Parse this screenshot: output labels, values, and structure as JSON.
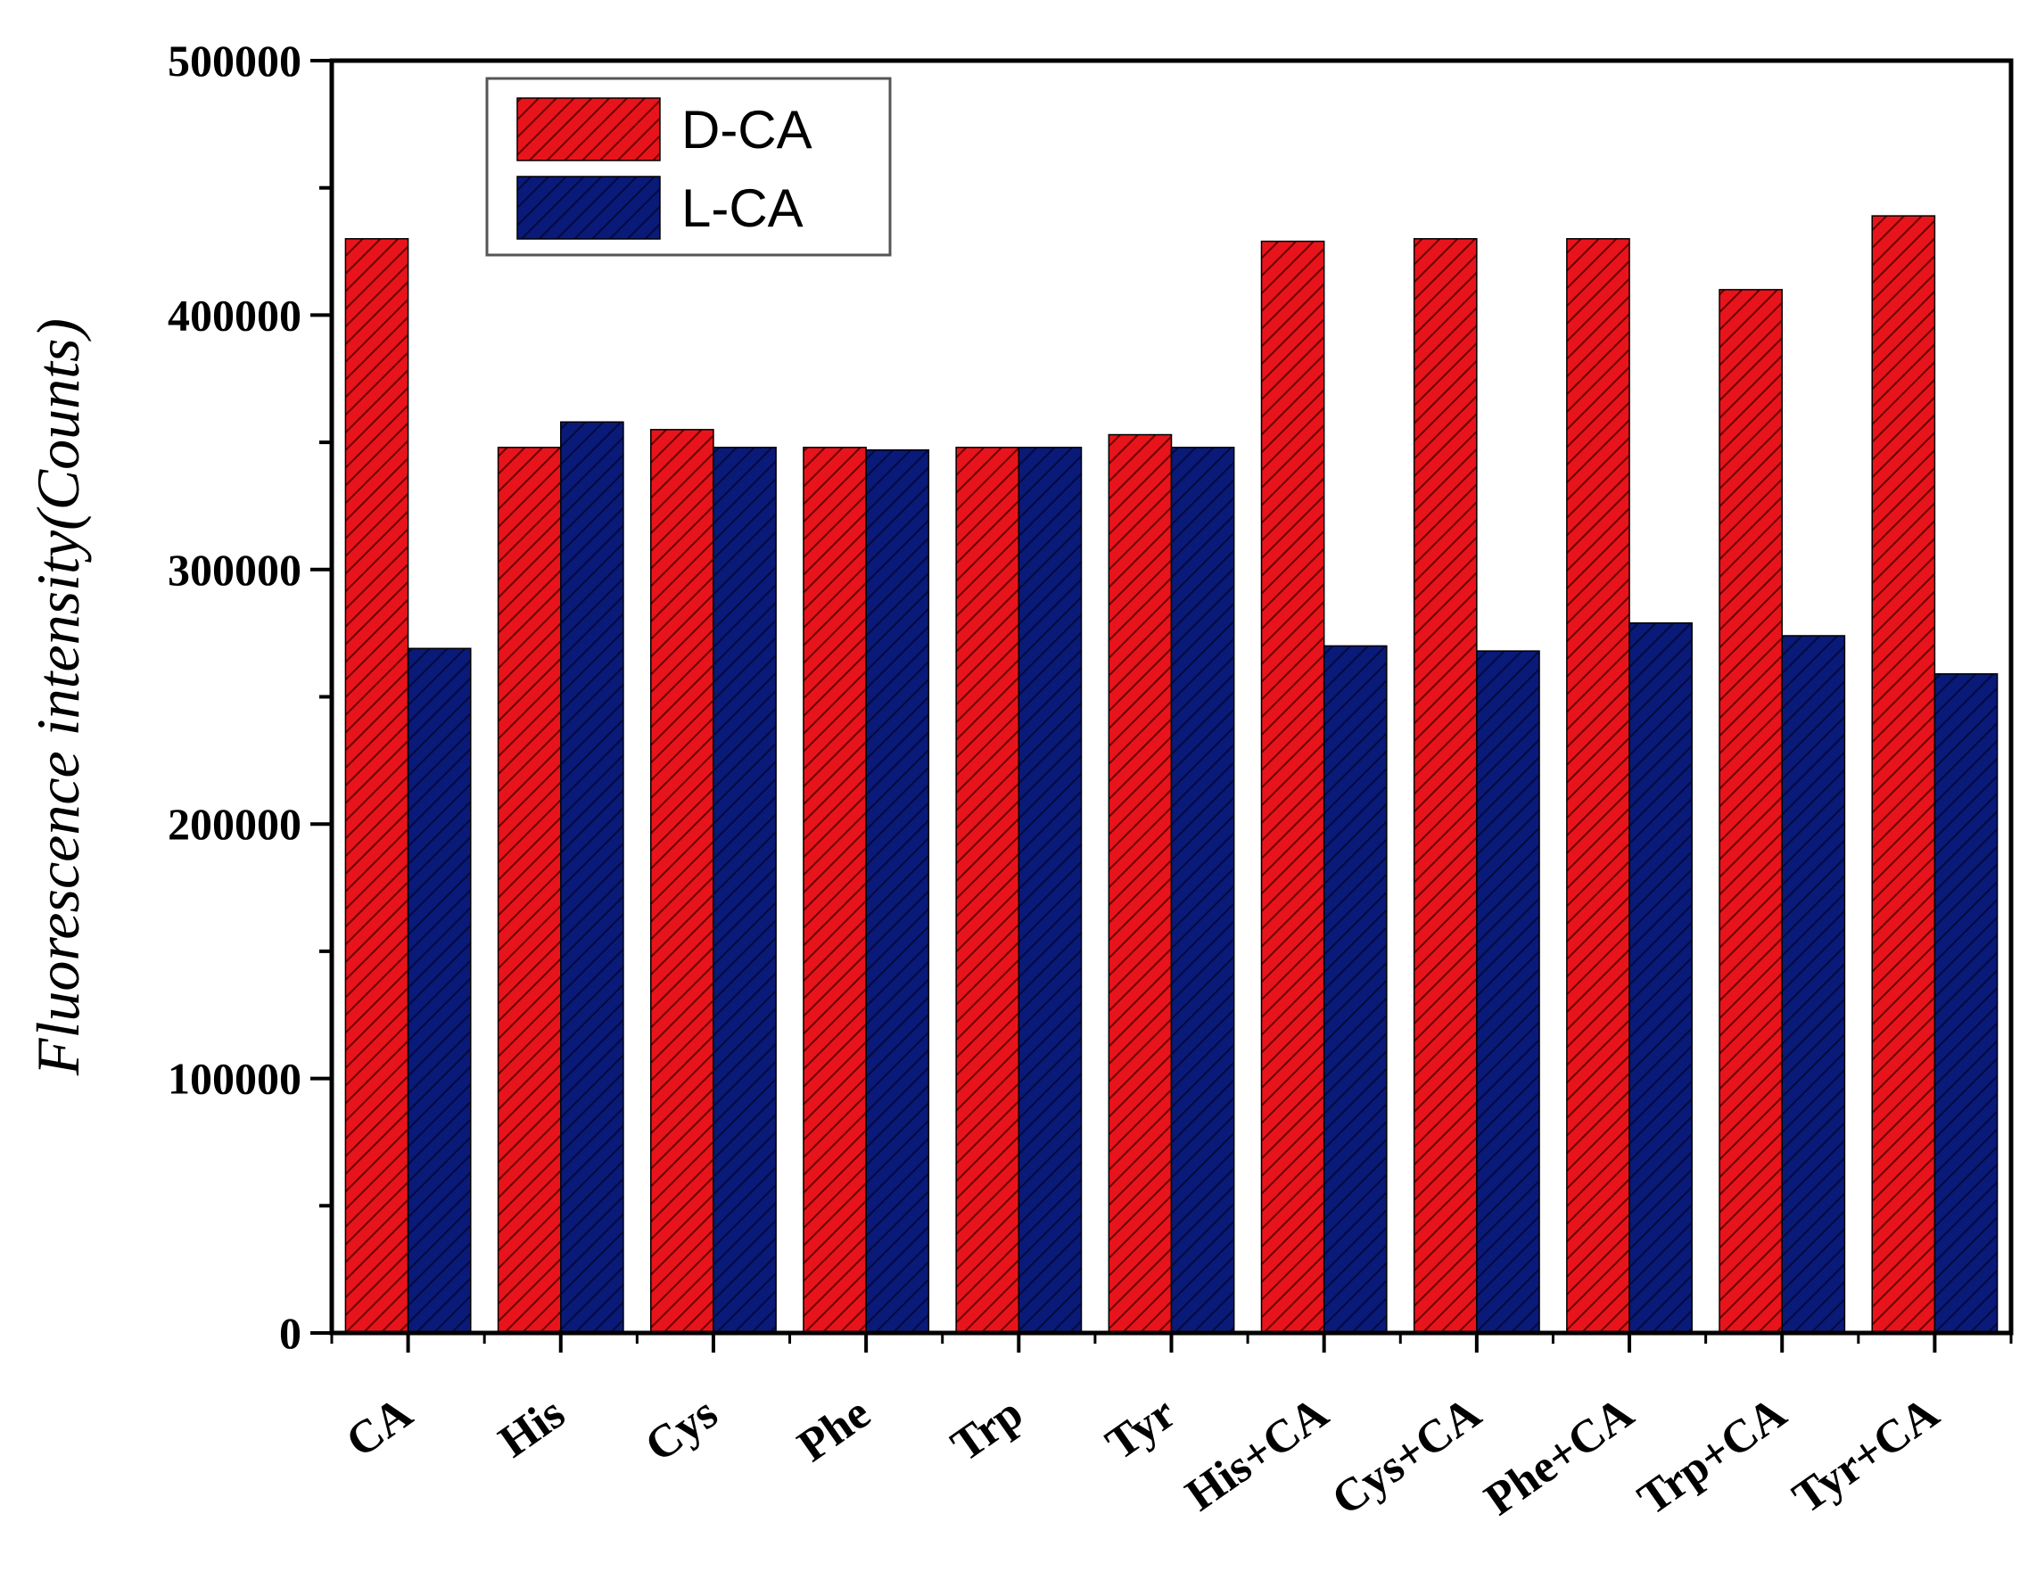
{
  "chart_data": {
    "type": "bar",
    "title": "",
    "xlabel": "",
    "ylabel": "Fluorescence intensity(Counts)",
    "ylim": [
      0,
      500000
    ],
    "yticks": [
      0,
      100000,
      200000,
      300000,
      400000,
      500000
    ],
    "ytick_labels": [
      "0",
      "100000",
      "200000",
      "300000",
      "400000",
      "500000"
    ],
    "categories": [
      "CA",
      "His",
      "Cys",
      "Phe",
      "Trp",
      "Tyr",
      "His+CA",
      "Cys+CA",
      "Phe+CA",
      "Trp+CA",
      "Tyr+CA"
    ],
    "series": [
      {
        "name": "D-CA",
        "color": "#e8141b",
        "values": [
          430000,
          348000,
          355000,
          348000,
          348000,
          353000,
          429000,
          430000,
          430000,
          410000,
          439000
        ]
      },
      {
        "name": "L-CA",
        "color": "#0a1a78",
        "values": [
          269000,
          358000,
          348000,
          347000,
          348000,
          348000,
          270000,
          268000,
          279000,
          274000,
          259000
        ]
      }
    ],
    "legend_position": "top-left",
    "grid": false
  }
}
